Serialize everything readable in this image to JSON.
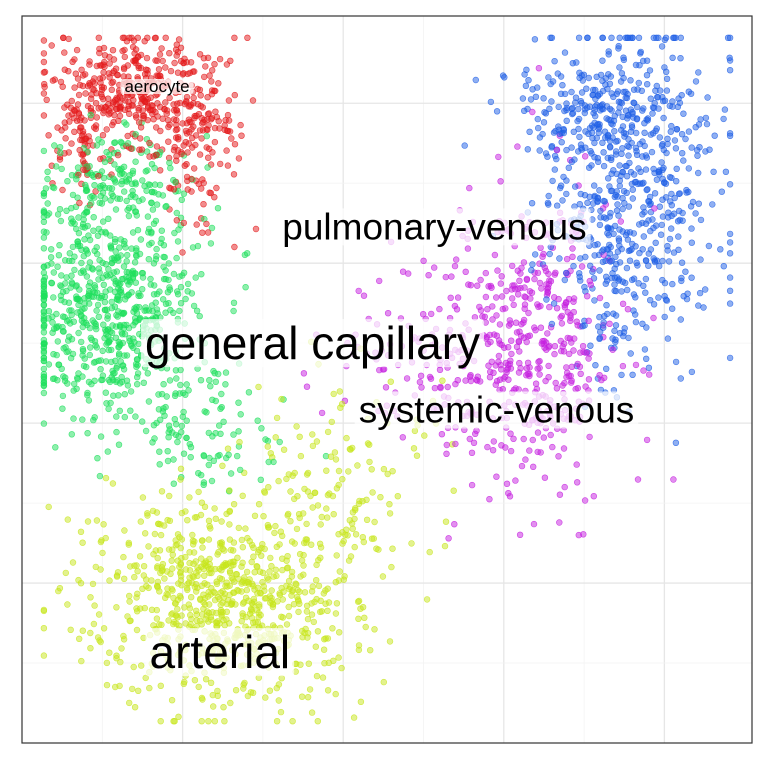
{
  "chart_data": {
    "type": "scatter",
    "title": "",
    "xlabel": "",
    "ylabel": "",
    "xlim": [
      0,
      100
    ],
    "ylim": [
      0,
      100
    ],
    "grid": true,
    "legend": "none",
    "series": [
      {
        "name": "aerocyte",
        "color": "#E41A1C",
        "clusters": [
          {
            "cx": 16,
            "cy": 89,
            "sx": 6,
            "sy": 4,
            "n": 420
          },
          {
            "cx": 24,
            "cy": 80,
            "sx": 3,
            "sy": 5,
            "n": 90
          },
          {
            "cx": 8,
            "cy": 82,
            "sx": 2,
            "sy": 4,
            "n": 50
          }
        ]
      },
      {
        "name": "general capillary",
        "color": "#1EE05C",
        "clusters": [
          {
            "cx": 12,
            "cy": 60,
            "sx": 6,
            "sy": 8,
            "n": 700
          },
          {
            "cx": 25,
            "cy": 44,
            "sx": 5,
            "sy": 5,
            "n": 90
          },
          {
            "cx": 13,
            "cy": 77,
            "sx": 5,
            "sy": 4,
            "n": 160
          }
        ]
      },
      {
        "name": "arterial",
        "color": "#C7E61C",
        "clusters": [
          {
            "cx": 28,
            "cy": 20,
            "sx": 9,
            "sy": 7,
            "n": 820
          },
          {
            "cx": 45,
            "cy": 37,
            "sx": 7,
            "sy": 7,
            "n": 110
          }
        ]
      },
      {
        "name": "systemic-venous",
        "color": "#C51FE0",
        "clusters": [
          {
            "cx": 69,
            "cy": 55,
            "sx": 6,
            "sy": 10,
            "n": 480
          },
          {
            "cx": 53,
            "cy": 53,
            "sx": 6,
            "sy": 5,
            "n": 80
          }
        ]
      },
      {
        "name": "pulmonary-venous",
        "color": "#1F5FE6",
        "clusters": [
          {
            "cx": 83,
            "cy": 75,
            "sx": 6,
            "sy": 12,
            "n": 620
          },
          {
            "cx": 80,
            "cy": 87,
            "sx": 7,
            "sy": 3,
            "n": 150
          }
        ]
      }
    ],
    "annotations": [
      {
        "text": "aerocyte",
        "x": 18.5,
        "y": 90.3,
        "size": "small"
      },
      {
        "text": "pulmonary-venous",
        "x": 56.5,
        "y": 71.0,
        "size": "medium"
      },
      {
        "text": "general capillary",
        "x": 39.8,
        "y": 55.0,
        "size": "large"
      },
      {
        "text": "systemic-venous",
        "x": 65.0,
        "y": 45.8,
        "size": "medium"
      },
      {
        "text": "arterial",
        "x": 27.1,
        "y": 12.5,
        "size": "large"
      }
    ]
  }
}
